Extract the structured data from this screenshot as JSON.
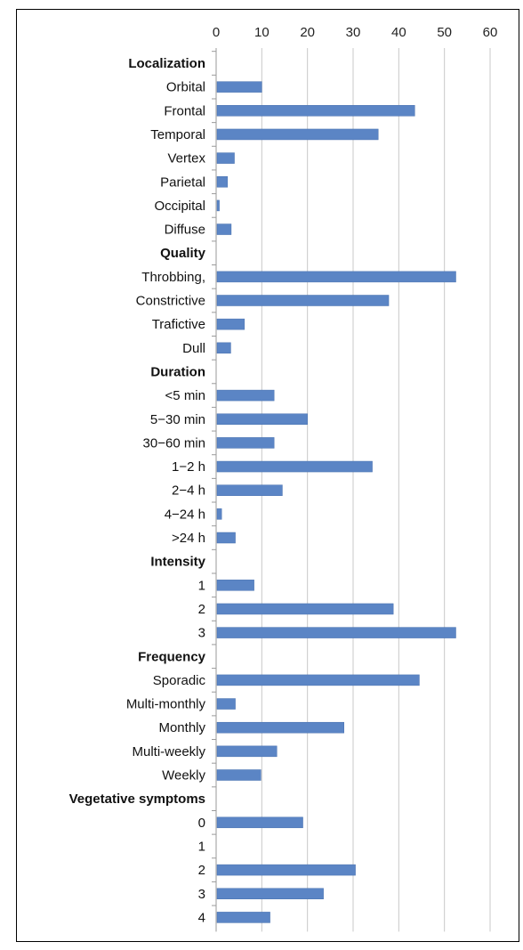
{
  "chart_data": {
    "type": "bar",
    "orientation": "horizontal",
    "xlim": [
      0,
      60
    ],
    "x_ticks": [
      0,
      10,
      20,
      30,
      40,
      50,
      60
    ],
    "grid": true,
    "bar_color": "#5b85c5",
    "categories": [
      {
        "label": "Localization",
        "header": true
      },
      {
        "label": "Orbital",
        "value": 10
      },
      {
        "label": "Frontal",
        "value": 43.5
      },
      {
        "label": "Temporal",
        "value": 35.5
      },
      {
        "label": "Vertex",
        "value": 4
      },
      {
        "label": "Parietal",
        "value": 2.5
      },
      {
        "label": "Occipital",
        "value": 0.7
      },
      {
        "label": "Diffuse",
        "value": 3.3
      },
      {
        "label": "Quality",
        "header": true
      },
      {
        "label": "Throbbing,",
        "value": 52.5
      },
      {
        "label": "Constrictive",
        "value": 37.8
      },
      {
        "label": "Trafictive",
        "value": 6.2
      },
      {
        "label": "Dull",
        "value": 3.2
      },
      {
        "label": "Duration",
        "header": true
      },
      {
        "label": "<5 min",
        "value": 12.7
      },
      {
        "label": "5−30 min",
        "value": 20
      },
      {
        "label": "30−60 min",
        "value": 12.7
      },
      {
        "label": "1−2 h",
        "value": 34.2
      },
      {
        "label": "2−4 h",
        "value": 14.5
      },
      {
        "label": "4−24 h",
        "value": 1.2
      },
      {
        "label": ">24 h",
        "value": 4.2
      },
      {
        "label": "Intensity",
        "header": true
      },
      {
        "label": "1",
        "value": 8.3
      },
      {
        "label": "2",
        "value": 38.8
      },
      {
        "label": "3",
        "value": 52.5
      },
      {
        "label": "Frequency",
        "header": true
      },
      {
        "label": "Sporadic",
        "value": 44.5
      },
      {
        "label": "Multi-monthly",
        "value": 4.2
      },
      {
        "label": "Monthly",
        "value": 28
      },
      {
        "label": "Multi-weekly",
        "value": 13.3
      },
      {
        "label": "Weekly",
        "value": 9.8
      },
      {
        "label": "Vegetative symptoms",
        "header": true
      },
      {
        "label": "0",
        "value": 19
      },
      {
        "label": "1",
        "value": 0
      },
      {
        "label": "2",
        "value": 30.5
      },
      {
        "label": "3",
        "value": 23.5
      },
      {
        "label": "4",
        "value": 11.8
      }
    ]
  }
}
